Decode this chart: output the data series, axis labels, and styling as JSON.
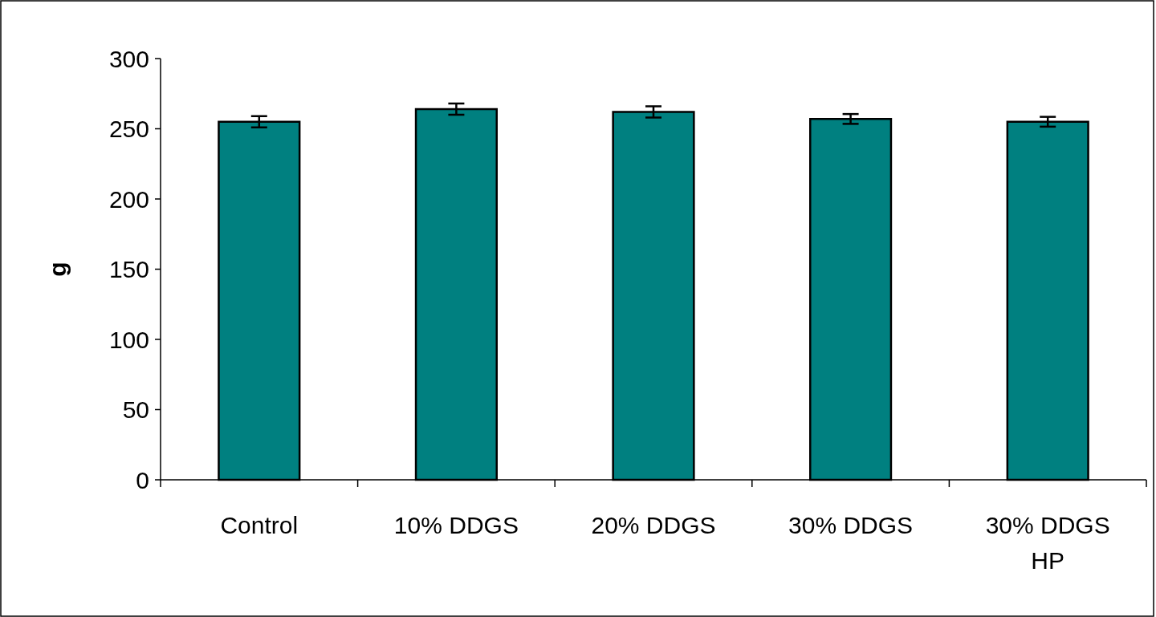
{
  "chart_data": {
    "type": "bar",
    "ylabel": "g",
    "categories": [
      "Control",
      "10% DDGS",
      "20% DDGS",
      "30% DDGS",
      "30% DDGS HP"
    ],
    "values": [
      255,
      264,
      262,
      257,
      255
    ],
    "errors": [
      4,
      4,
      4,
      3.5,
      3.5
    ],
    "color": "#008080",
    "ylim": [
      0,
      300
    ],
    "yticks": [
      0,
      50,
      100,
      150,
      200,
      250,
      300
    ]
  }
}
